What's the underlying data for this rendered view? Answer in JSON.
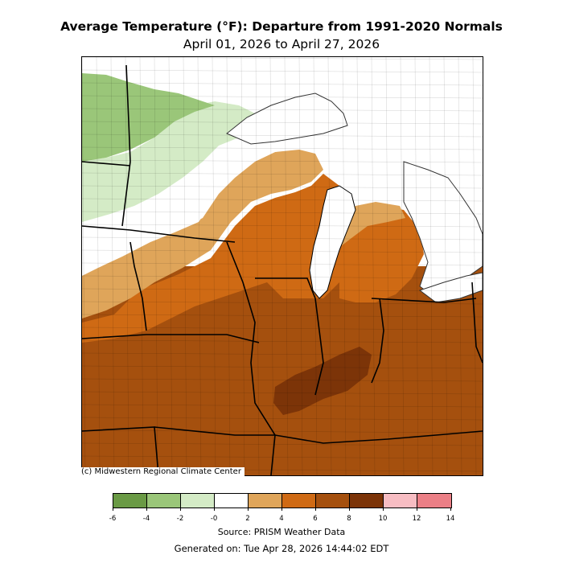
{
  "title": "Average Temperature (°F): Departure from 1991-2020 Normals",
  "subtitle": "April 01, 2026 to April 27, 2026",
  "copyright": "(c) Midwestern Regional Climate Center",
  "source": "Source: PRISM Weather Data",
  "generated": "Generated on: Tue Apr 28, 2026 14:44:02 EDT",
  "legend": {
    "ticks": [
      "-6",
      "-4",
      "-2",
      "-0",
      "2",
      "4",
      "6",
      "8",
      "10",
      "12",
      "14"
    ],
    "colors": [
      "#6a9a45",
      "#9ac679",
      "#d4ebc6",
      "#ffffff",
      "#dfa55a",
      "#cf6a14",
      "#a5500e",
      "#7c3408",
      "#f7bdc3",
      "#eb7f86"
    ]
  },
  "map_colors": {
    "green_dark": "#9ac679",
    "green_light": "#d4ebc6",
    "neutral": "#ffffff",
    "tan": "#dfa55a",
    "orange": "#cf6a14",
    "brown": "#a5500e",
    "dark_brown": "#7c3408",
    "water": "#ffffff",
    "outside": "#ffffff"
  }
}
